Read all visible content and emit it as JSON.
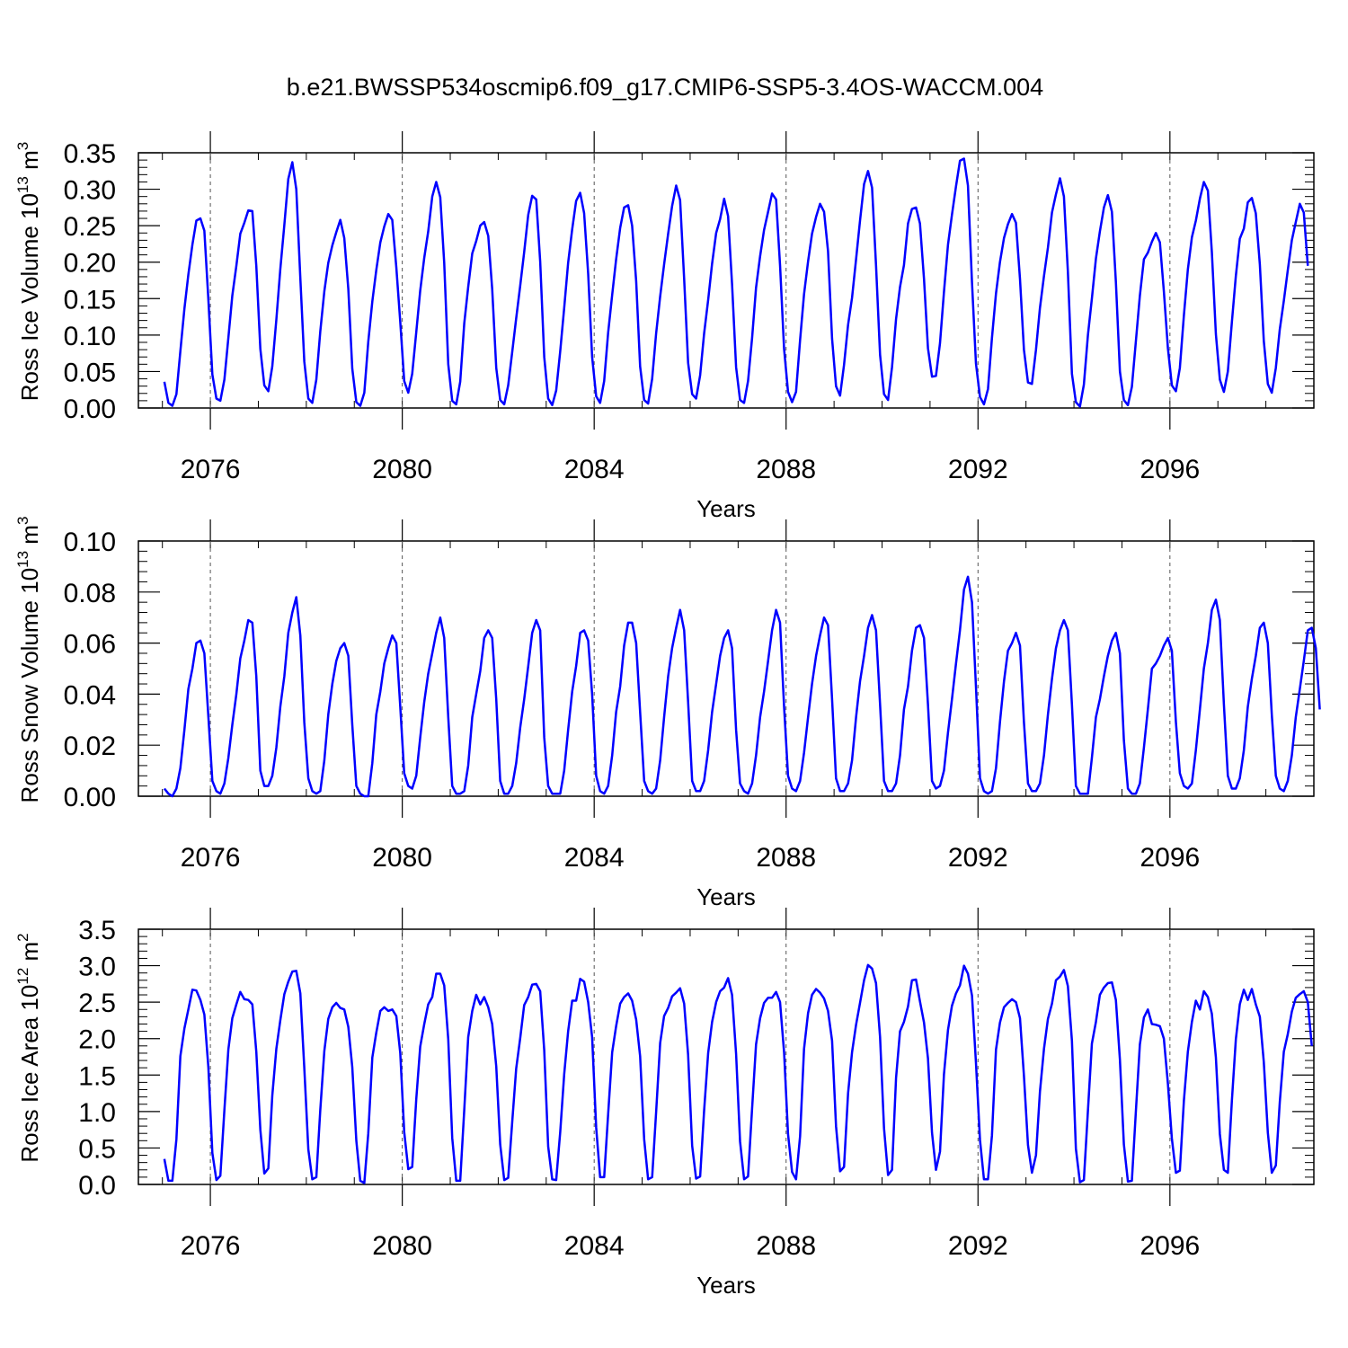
{
  "title": "b.e21.BWSSP534oscmip6.f09_g17.CMIP6-SSP5-3.4OS-WACCM.004",
  "line_color": "#0000ff",
  "chart_data": [
    {
      "type": "line",
      "ylabel": {
        "base": "Ross Ice Volume 10",
        "exp1": "13",
        "mid": " m",
        "exp2": "3"
      },
      "xlabel": "Years",
      "ylim": [
        0,
        0.35
      ],
      "xlim": [
        2075,
        2099
      ],
      "yticks": [
        "0.00",
        "0.05",
        "0.10",
        "0.15",
        "0.20",
        "0.25",
        "0.30",
        "0.35"
      ],
      "xticks": [
        "2076",
        "2080",
        "2084",
        "2088",
        "2092",
        "2096"
      ],
      "series": [
        {
          "x_start": 2075.0417,
          "x_step": 0.08333,
          "values": [
            0.036,
            0.007,
            0.003,
            0.019,
            0.078,
            0.136,
            0.183,
            0.224,
            0.257,
            0.26,
            0.243,
            0.148,
            0.046,
            0.013,
            0.01,
            0.039,
            0.096,
            0.154,
            0.195,
            0.239,
            0.254,
            0.271,
            0.27,
            0.195,
            0.081,
            0.031,
            0.023,
            0.057,
            0.121,
            0.19,
            0.251,
            0.314,
            0.337,
            0.3,
            0.178,
            0.064,
            0.013,
            0.007,
            0.039,
            0.105,
            0.16,
            0.199,
            0.223,
            0.241,
            0.258,
            0.233,
            0.163,
            0.054,
            0.008,
            0.003,
            0.021,
            0.091,
            0.146,
            0.189,
            0.227,
            0.249,
            0.266,
            0.258,
            0.193,
            0.118,
            0.037,
            0.021,
            0.047,
            0.104,
            0.161,
            0.206,
            0.242,
            0.29,
            0.31,
            0.289,
            0.199,
            0.06,
            0.01,
            0.005,
            0.036,
            0.116,
            0.166,
            0.212,
            0.229,
            0.25,
            0.255,
            0.236,
            0.163,
            0.055,
            0.011,
            0.005,
            0.031,
            0.077,
            0.123,
            0.168,
            0.214,
            0.265,
            0.291,
            0.286,
            0.201,
            0.07,
            0.013,
            0.004,
            0.024,
            0.078,
            0.137,
            0.199,
            0.245,
            0.284,
            0.295,
            0.267,
            0.184,
            0.07,
            0.016,
            0.007,
            0.037,
            0.103,
            0.155,
            0.204,
            0.247,
            0.275,
            0.278,
            0.25,
            0.174,
            0.057,
            0.011,
            0.006,
            0.04,
            0.102,
            0.153,
            0.197,
            0.239,
            0.277,
            0.305,
            0.285,
            0.177,
            0.062,
            0.019,
            0.013,
            0.045,
            0.102,
            0.148,
            0.198,
            0.24,
            0.259,
            0.287,
            0.263,
            0.17,
            0.056,
            0.011,
            0.007,
            0.037,
            0.096,
            0.165,
            0.208,
            0.244,
            0.269,
            0.294,
            0.286,
            0.196,
            0.081,
            0.022,
            0.008,
            0.022,
            0.093,
            0.156,
            0.201,
            0.239,
            0.262,
            0.28,
            0.269,
            0.215,
            0.095,
            0.03,
            0.017,
            0.059,
            0.114,
            0.151,
            0.204,
            0.257,
            0.307,
            0.325,
            0.302,
            0.196,
            0.073,
            0.019,
            0.011,
            0.056,
            0.122,
            0.166,
            0.196,
            0.253,
            0.273,
            0.275,
            0.253,
            0.177,
            0.082,
            0.043,
            0.044,
            0.089,
            0.159,
            0.224,
            0.265,
            0.304,
            0.339,
            0.342,
            0.305,
            0.172,
            0.061,
            0.015,
            0.005,
            0.026,
            0.096,
            0.157,
            0.2,
            0.233,
            0.252,
            0.266,
            0.254,
            0.177,
            0.08,
            0.035,
            0.033,
            0.08,
            0.137,
            0.181,
            0.22,
            0.268,
            0.293,
            0.315,
            0.29,
            0.187,
            0.047,
            0.008,
            0.002,
            0.032,
            0.1,
            0.15,
            0.205,
            0.242,
            0.275,
            0.292,
            0.269,
            0.173,
            0.05,
            0.011,
            0.004,
            0.029,
            0.092,
            0.154,
            0.204,
            0.213,
            0.228,
            0.24,
            0.227,
            0.16,
            0.082,
            0.031,
            0.023,
            0.055,
            0.127,
            0.19,
            0.234,
            0.257,
            0.287,
            0.31,
            0.298,
            0.214,
            0.101,
            0.039,
            0.022,
            0.05,
            0.118,
            0.181,
            0.232,
            0.246,
            0.282,
            0.288,
            0.267,
            0.197,
            0.092,
            0.033,
            0.021,
            0.055,
            0.108,
            0.147,
            0.189,
            0.23,
            0.255,
            0.28,
            0.268,
            0.195
          ]
        }
      ]
    },
    {
      "type": "line",
      "ylabel": {
        "base": "Ross Snow Volume 10",
        "exp1": "13",
        "mid": " m",
        "exp2": "3"
      },
      "xlabel": "Years",
      "ylim": [
        0,
        0.1
      ],
      "xlim": [
        2075,
        2099
      ],
      "yticks": [
        "0.00",
        "0.02",
        "0.04",
        "0.06",
        "0.08",
        "0.10"
      ],
      "xticks": [
        "2076",
        "2080",
        "2084",
        "2088",
        "2092",
        "2096"
      ],
      "series": [
        {
          "x_start": 2075.0417,
          "x_step": 0.08333,
          "values": [
            0.003,
            0.001,
            0.0,
            0.003,
            0.011,
            0.026,
            0.042,
            0.05,
            0.06,
            0.061,
            0.056,
            0.031,
            0.006,
            0.002,
            0.001,
            0.005,
            0.015,
            0.028,
            0.04,
            0.054,
            0.061,
            0.069,
            0.068,
            0.047,
            0.01,
            0.004,
            0.004,
            0.008,
            0.019,
            0.035,
            0.047,
            0.064,
            0.072,
            0.078,
            0.063,
            0.029,
            0.007,
            0.002,
            0.001,
            0.002,
            0.014,
            0.032,
            0.044,
            0.053,
            0.058,
            0.06,
            0.055,
            0.028,
            0.004,
            0.001,
            0.0,
            0.0,
            0.013,
            0.032,
            0.041,
            0.052,
            0.058,
            0.063,
            0.06,
            0.035,
            0.009,
            0.004,
            0.003,
            0.008,
            0.023,
            0.037,
            0.048,
            0.056,
            0.064,
            0.07,
            0.062,
            0.031,
            0.004,
            0.001,
            0.001,
            0.002,
            0.012,
            0.031,
            0.04,
            0.049,
            0.062,
            0.065,
            0.062,
            0.038,
            0.006,
            0.001,
            0.001,
            0.004,
            0.013,
            0.027,
            0.038,
            0.051,
            0.064,
            0.069,
            0.065,
            0.023,
            0.004,
            0.001,
            0.001,
            0.001,
            0.01,
            0.026,
            0.041,
            0.051,
            0.064,
            0.065,
            0.061,
            0.04,
            0.008,
            0.002,
            0.001,
            0.004,
            0.016,
            0.033,
            0.043,
            0.059,
            0.068,
            0.068,
            0.06,
            0.033,
            0.006,
            0.002,
            0.001,
            0.003,
            0.014,
            0.031,
            0.047,
            0.058,
            0.066,
            0.073,
            0.065,
            0.037,
            0.006,
            0.002,
            0.002,
            0.006,
            0.018,
            0.033,
            0.044,
            0.055,
            0.062,
            0.065,
            0.058,
            0.026,
            0.005,
            0.002,
            0.001,
            0.005,
            0.016,
            0.031,
            0.041,
            0.053,
            0.065,
            0.073,
            0.068,
            0.035,
            0.008,
            0.003,
            0.002,
            0.006,
            0.017,
            0.031,
            0.044,
            0.055,
            0.063,
            0.07,
            0.067,
            0.038,
            0.007,
            0.002,
            0.002,
            0.005,
            0.014,
            0.031,
            0.045,
            0.055,
            0.066,
            0.071,
            0.065,
            0.036,
            0.006,
            0.002,
            0.002,
            0.005,
            0.016,
            0.034,
            0.043,
            0.057,
            0.066,
            0.067,
            0.062,
            0.036,
            0.006,
            0.003,
            0.004,
            0.01,
            0.025,
            0.038,
            0.052,
            0.065,
            0.081,
            0.086,
            0.076,
            0.043,
            0.007,
            0.002,
            0.001,
            0.002,
            0.011,
            0.029,
            0.045,
            0.057,
            0.06,
            0.064,
            0.059,
            0.029,
            0.005,
            0.002,
            0.002,
            0.005,
            0.016,
            0.032,
            0.046,
            0.058,
            0.065,
            0.069,
            0.065,
            0.036,
            0.004,
            0.001,
            0.001,
            0.001,
            0.015,
            0.031,
            0.038,
            0.047,
            0.055,
            0.061,
            0.064,
            0.056,
            0.022,
            0.003,
            0.001,
            0.001,
            0.005,
            0.019,
            0.034,
            0.05,
            0.052,
            0.055,
            0.059,
            0.062,
            0.057,
            0.029,
            0.009,
            0.004,
            0.003,
            0.005,
            0.018,
            0.034,
            0.05,
            0.06,
            0.073,
            0.077,
            0.069,
            0.036,
            0.008,
            0.003,
            0.003,
            0.007,
            0.018,
            0.035,
            0.046,
            0.055,
            0.066,
            0.068,
            0.06,
            0.032,
            0.008,
            0.003,
            0.002,
            0.006,
            0.016,
            0.031,
            0.042,
            0.053,
            0.065,
            0.066,
            0.058,
            0.034
          ]
        }
      ]
    },
    {
      "type": "line",
      "ylabel": {
        "base": "Ross Ice Area 10",
        "exp1": "12",
        "mid": " m",
        "exp2": "2"
      },
      "xlabel": "Years",
      "ylim": [
        0,
        3.5
      ],
      "xlim": [
        2075,
        2099
      ],
      "yticks": [
        "0.0",
        "0.5",
        "1.0",
        "1.5",
        "2.0",
        "2.5",
        "3.0",
        "3.5"
      ],
      "xticks": [
        "2076",
        "2080",
        "2084",
        "2088",
        "2092",
        "2096"
      ],
      "series": [
        {
          "x_start": 2075.0417,
          "x_step": 0.08333,
          "values": [
            0.35,
            0.05,
            0.05,
            0.62,
            1.76,
            2.14,
            2.4,
            2.67,
            2.66,
            2.53,
            2.33,
            1.6,
            0.43,
            0.06,
            0.12,
            1.02,
            1.85,
            2.28,
            2.47,
            2.64,
            2.54,
            2.53,
            2.47,
            1.82,
            0.75,
            0.15,
            0.22,
            1.22,
            1.86,
            2.25,
            2.61,
            2.78,
            2.92,
            2.93,
            2.62,
            1.6,
            0.48,
            0.07,
            0.1,
            1.02,
            1.83,
            2.27,
            2.43,
            2.49,
            2.42,
            2.4,
            2.16,
            1.61,
            0.6,
            0.05,
            0.02,
            0.7,
            1.74,
            2.08,
            2.38,
            2.43,
            2.38,
            2.4,
            2.31,
            1.8,
            0.72,
            0.21,
            0.24,
            1.17,
            1.89,
            2.2,
            2.47,
            2.57,
            2.89,
            2.89,
            2.73,
            1.99,
            0.64,
            0.05,
            0.05,
            1.02,
            2.02,
            2.38,
            2.6,
            2.47,
            2.57,
            2.43,
            2.2,
            1.62,
            0.55,
            0.06,
            0.09,
            0.86,
            1.59,
            2.01,
            2.46,
            2.57,
            2.74,
            2.75,
            2.65,
            1.84,
            0.52,
            0.07,
            0.06,
            0.72,
            1.51,
            2.1,
            2.52,
            2.52,
            2.82,
            2.78,
            2.5,
            2.02,
            0.78,
            0.1,
            0.1,
            0.96,
            1.81,
            2.17,
            2.48,
            2.57,
            2.62,
            2.52,
            2.26,
            1.76,
            0.62,
            0.07,
            0.1,
            0.99,
            1.94,
            2.31,
            2.42,
            2.58,
            2.63,
            2.69,
            2.48,
            1.78,
            0.53,
            0.08,
            0.11,
            1.01,
            1.8,
            2.23,
            2.5,
            2.65,
            2.7,
            2.83,
            2.6,
            1.79,
            0.59,
            0.07,
            0.11,
            1.04,
            1.92,
            2.28,
            2.49,
            2.56,
            2.56,
            2.64,
            2.5,
            1.81,
            0.69,
            0.17,
            0.07,
            0.66,
            1.86,
            2.35,
            2.6,
            2.68,
            2.63,
            2.55,
            2.38,
            1.97,
            0.8,
            0.18,
            0.24,
            1.25,
            1.81,
            2.19,
            2.49,
            2.8,
            3.01,
            2.96,
            2.76,
            2.02,
            0.77,
            0.13,
            0.2,
            1.46,
            2.1,
            2.23,
            2.44,
            2.8,
            2.81,
            2.51,
            2.22,
            1.73,
            0.71,
            0.2,
            0.45,
            1.51,
            2.12,
            2.45,
            2.62,
            2.73,
            3.0,
            2.89,
            2.59,
            1.67,
            0.61,
            0.07,
            0.07,
            0.67,
            1.85,
            2.22,
            2.43,
            2.49,
            2.54,
            2.5,
            2.28,
            1.49,
            0.54,
            0.16,
            0.4,
            1.27,
            1.86,
            2.27,
            2.48,
            2.8,
            2.85,
            2.94,
            2.72,
            1.97,
            0.49,
            0.03,
            0.06,
            1.01,
            1.93,
            2.23,
            2.6,
            2.7,
            2.76,
            2.77,
            2.53,
            1.71,
            0.55,
            0.04,
            0.05,
            1.01,
            1.92,
            2.29,
            2.4,
            2.2,
            2.19,
            2.17,
            2.0,
            1.38,
            0.63,
            0.16,
            0.19,
            1.15,
            1.82,
            2.23,
            2.52,
            2.4,
            2.65,
            2.57,
            2.34,
            1.74,
            0.69,
            0.2,
            0.16,
            1.15,
            1.99,
            2.47,
            2.67,
            2.53,
            2.68,
            2.47,
            2.3,
            1.68,
            0.71,
            0.16,
            0.26,
            1.13,
            1.82,
            2.06,
            2.37,
            2.56,
            2.61,
            2.65,
            2.5,
            1.9
          ]
        }
      ]
    }
  ]
}
